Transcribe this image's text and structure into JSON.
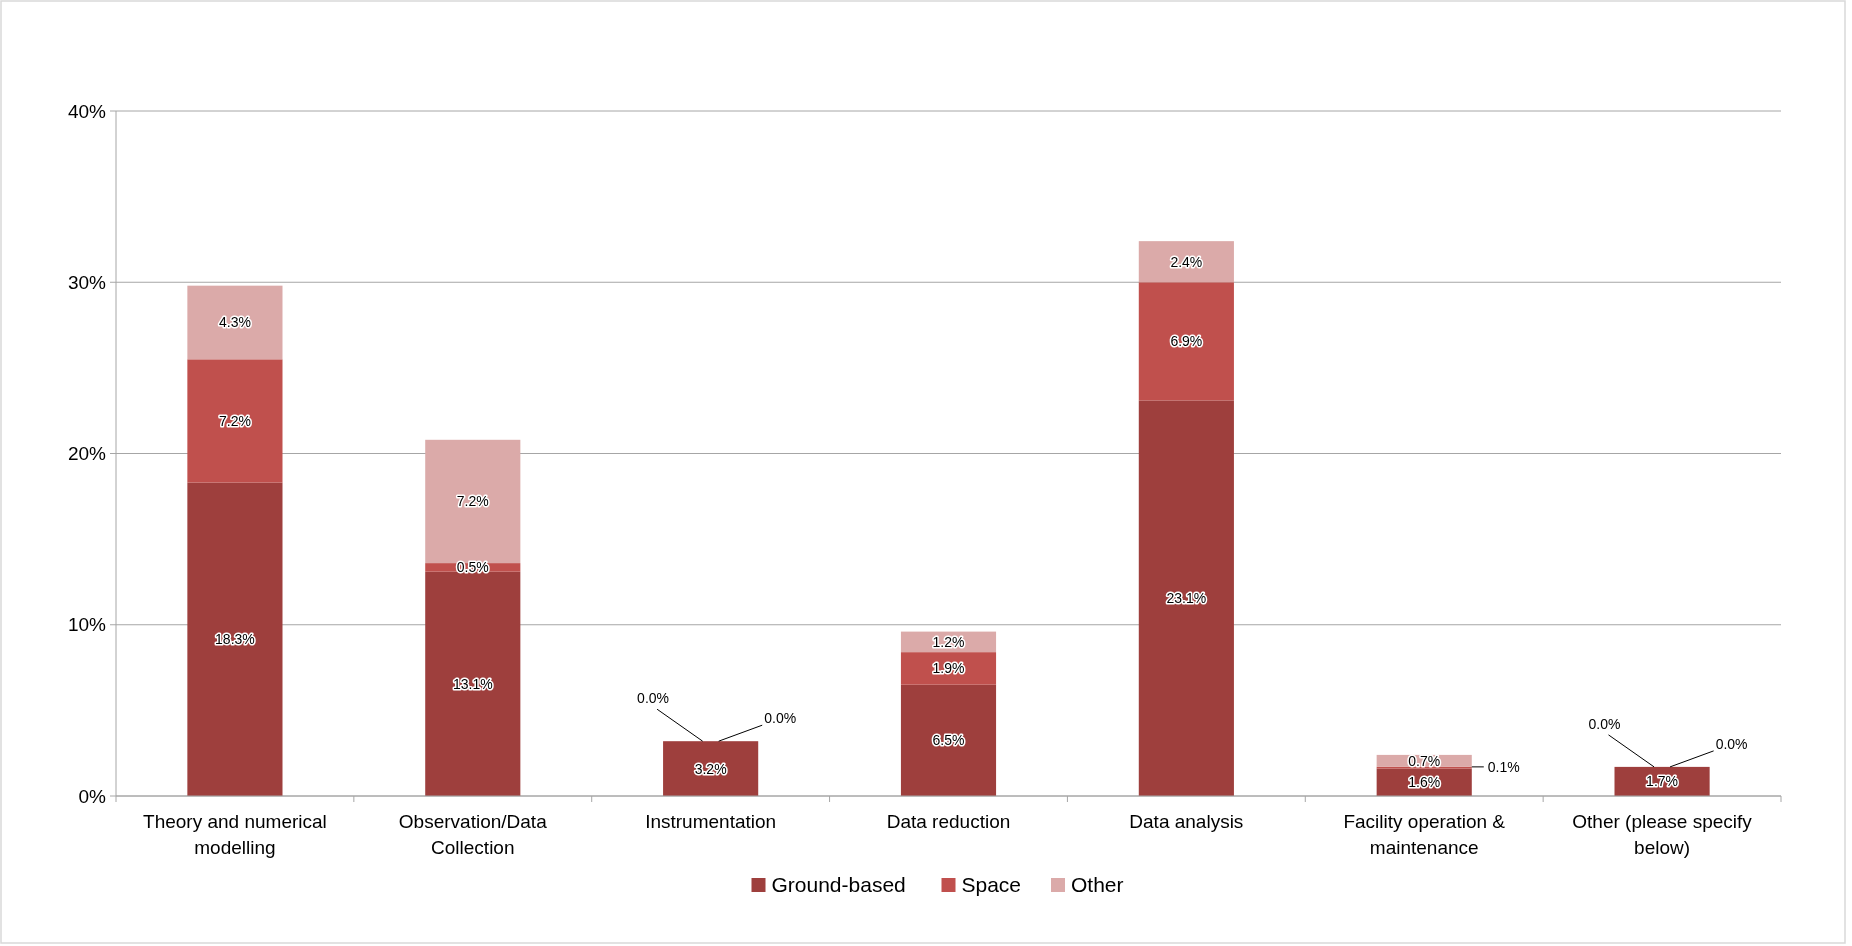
{
  "chart_data": {
    "type": "bar",
    "stacked": true,
    "categories": [
      "Theory and numerical modelling",
      "Observation/Data Collection",
      "Instrumentation",
      "Data reduction",
      "Data analysis",
      "Facility operation & maintenance",
      "Other (please specify below)"
    ],
    "series": [
      {
        "name": "Ground-based",
        "color": "#9e3f3d",
        "values": [
          18.3,
          13.1,
          3.2,
          6.5,
          23.1,
          1.6,
          1.7
        ],
        "value_labels": [
          "18.3%",
          "13.1%",
          "3.2%",
          "6.5%",
          "23.1%",
          "1.6%",
          "1.7%"
        ]
      },
      {
        "name": "Space",
        "color": "#c0504d",
        "values": [
          7.2,
          0.5,
          0.0,
          1.9,
          6.9,
          0.1,
          0.0
        ],
        "value_labels": [
          "7.2%",
          "0.5%",
          "0.0%",
          "1.9%",
          "6.9%",
          "0.1%",
          "0.0%"
        ]
      },
      {
        "name": "Other",
        "color": "#dbaaa9",
        "values": [
          4.3,
          7.2,
          0.0,
          1.2,
          2.4,
          0.7,
          0.0
        ],
        "value_labels": [
          "4.3%",
          "7.2%",
          "0.0%",
          "1.2%",
          "2.4%",
          "0.7%",
          "0.0%"
        ]
      }
    ],
    "ylim": [
      0,
      40
    ],
    "yticks": [
      {
        "value": 0,
        "label": "0%"
      },
      {
        "value": 10,
        "label": "10%"
      },
      {
        "value": 20,
        "label": "20%"
      },
      {
        "value": 30,
        "label": "30%"
      },
      {
        "value": 40,
        "label": "40%"
      }
    ],
    "grid": "y",
    "legend": "bottom"
  }
}
